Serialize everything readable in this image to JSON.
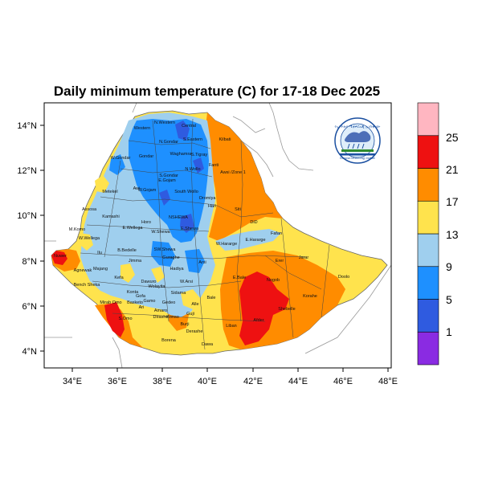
{
  "title": "Daily minimum temperature (C) for 17-18 Dec 2025",
  "axes": {
    "x_ticks": [
      "34°E",
      "36°E",
      "38°E",
      "40°E",
      "42°E",
      "44°E",
      "46°E",
      "48°E"
    ],
    "y_ticks": [
      "14°N",
      "12°N",
      "10°N",
      "8°N",
      "6°N",
      "4°N"
    ],
    "lon_range": [
      32.9,
      48.2
    ],
    "lat_range": [
      3.3,
      15.0
    ]
  },
  "colorbar": {
    "labels": [
      "1",
      "5",
      "9",
      "13",
      "17",
      "21",
      "25"
    ],
    "bins": [
      {
        "range": "<1",
        "color": "#8a2be2"
      },
      {
        "range": "1-5",
        "color": "#2f5be0"
      },
      {
        "range": "5-9",
        "color": "#1e90ff"
      },
      {
        "range": "9-13",
        "color": "#9fcfee"
      },
      {
        "range": "13-17",
        "color": "#ffe34d"
      },
      {
        "range": "17-21",
        "color": "#ff8c00"
      },
      {
        "range": "21-25",
        "color": "#ee1111"
      },
      {
        "range": ">25",
        "color": "#ffb6c1"
      }
    ]
  },
  "regions": [
    "N.Western",
    "Central",
    "Western",
    "N.Gondar",
    "S.Eastern",
    "Waghamra",
    "S.Tigray",
    "Kilbati",
    "W.Gondar",
    "Gondar",
    "N.Wollo",
    "Fanti",
    "Awsi /Zone 1",
    "S.Gondar",
    "Metekel",
    "Awi",
    "W.Gojam",
    "E.Gojam",
    "South Wollo",
    "Oromiya",
    "Hari",
    "Siti",
    "Assosa",
    "Kamashi",
    "NSHEWA",
    "E.Wellega",
    "Horo",
    "W.Shewa",
    "E.Shewa",
    "W.Hararge",
    "E.Hararge",
    "Fafan",
    "DiD",
    "M.Komo",
    "W.Wellega",
    "Ilu",
    "Jimma",
    "SW.Shewa",
    "Guraghe",
    "Arsi",
    "B.Bedelle",
    "Jarar",
    "Erer",
    "Nuwer",
    "Agnewak",
    "Bench Sheka",
    "Kefa",
    "Dawuro",
    "Wolayita",
    "Hadiya",
    "W.Arsi",
    "E.Bale",
    "Nogob",
    "Doolo",
    "Korahe",
    "Majang",
    "Mirab Omo",
    "Konta",
    "Gamo",
    "Sidama",
    "Gedeo",
    "Guji",
    "Bale",
    "Shebelle",
    "Dawa",
    "Liban",
    "Afder",
    "Borena",
    "S.Omo",
    "Gofa",
    "Amaro",
    "Konso",
    "Burji",
    "Alle",
    "Basketo",
    "Ari",
    "Dirashe",
    "Derashe"
  ],
  "logo": {
    "name": "Ethiopian Meteorology Institute",
    "banner_text": "የኢትዮጵያ ሚቲዎሮሎጂ ኢንስቲትዩት"
  },
  "map": {
    "ocean_color": "#ffffff",
    "land_outside_color": "#ffffff",
    "country_border_color": "#999999",
    "internal_border_color": "#444444"
  }
}
